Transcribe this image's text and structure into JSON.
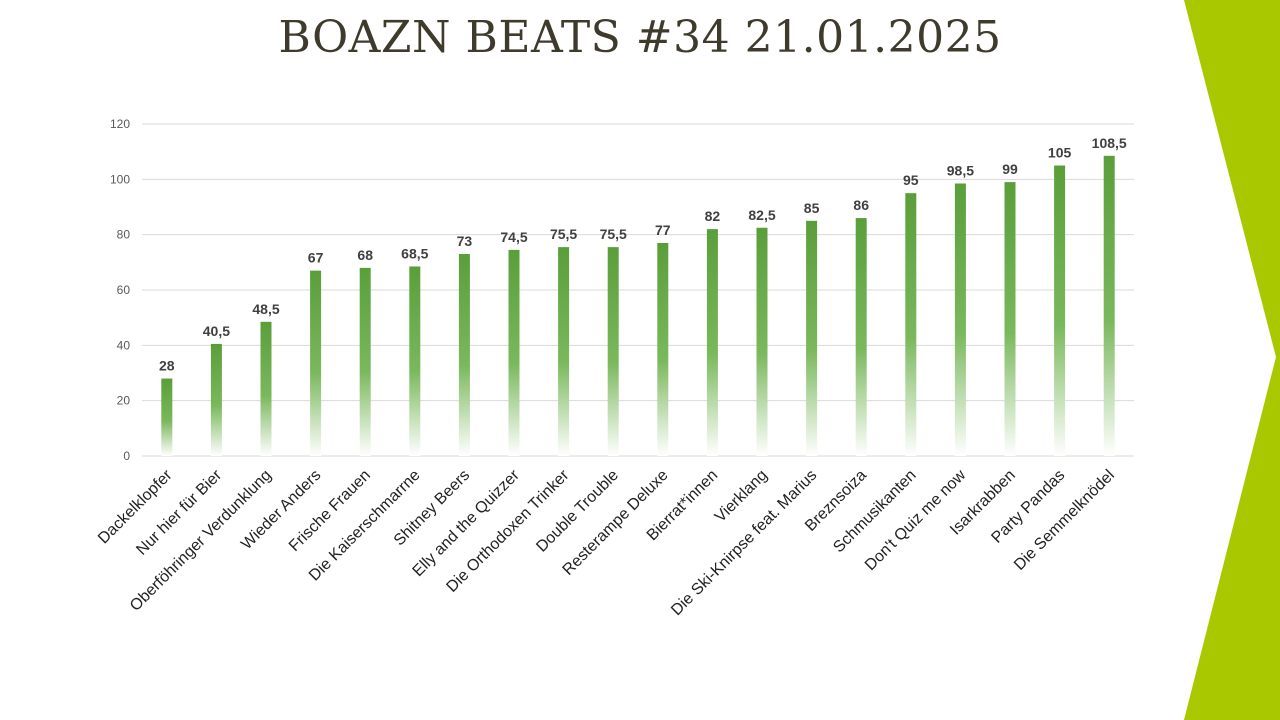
{
  "slide": {
    "title": "BOAZN BEATS #34 21.01.2025"
  },
  "colors": {
    "bar": "#5a9e3a",
    "accent": "#aac800",
    "grid": "#d9d9d9",
    "title": "#3e3a2c"
  },
  "chart_data": {
    "type": "bar",
    "title": "",
    "xlabel": "",
    "ylabel": "",
    "ylim": [
      0,
      120
    ],
    "yticks": [
      0,
      20,
      40,
      60,
      80,
      100,
      120
    ],
    "grid": true,
    "categories": [
      "Dackelklopfer",
      "Nur hier für Bier",
      "Oberföhringer Verdunklung",
      "Wieder Anders",
      "Frische Frauen",
      "Die Kaiserschmarrne",
      "Shitney Beers",
      "Elly and the Quizzer",
      "Die Orthodoxen Trinker",
      "Double Trouble",
      "Resterampe Deluxe",
      "Bierrat*innen",
      "Vierklang",
      "Die Ski-Knirpse feat. Marius",
      "Breznsoiza",
      "Schmusikanten",
      "Don't Quiz me now",
      "Isarkrabben",
      "Party Pandas",
      "Die Semmelknödel"
    ],
    "values": [
      28,
      40.5,
      48.5,
      67,
      68,
      68.5,
      73,
      74.5,
      75.5,
      75.5,
      77,
      82,
      82.5,
      85,
      86,
      95,
      98.5,
      99,
      105,
      108.5
    ],
    "labels": [
      "28",
      "40,5",
      "48,5",
      "67",
      "68",
      "68,5",
      "73",
      "74,5",
      "75,5",
      "75,5",
      "77",
      "82",
      "82,5",
      "85",
      "86",
      "95",
      "98,5",
      "99",
      "105",
      "108,5"
    ]
  }
}
